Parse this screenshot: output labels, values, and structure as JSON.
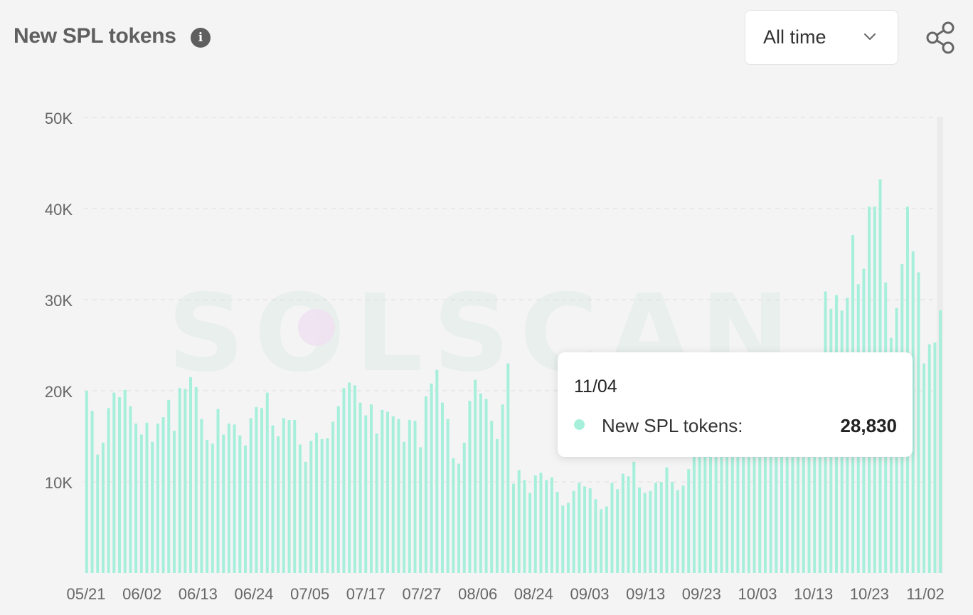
{
  "header": {
    "title": "New SPL tokens",
    "info_icon": "info-icon",
    "range_select": {
      "selected": "All time",
      "icon": "chevron-down-icon"
    },
    "share_icon": "share-icon"
  },
  "watermark": "SOLSCAN",
  "tooltip": {
    "date": "11/04",
    "series": "New SPL tokens:",
    "value": "28,830",
    "dot_color": "#a6efdb"
  },
  "chart_data": {
    "type": "bar",
    "bar_color": "#a6efdb",
    "ylim": [
      0,
      50000
    ],
    "ytick_labels": [
      "10K",
      "20K",
      "30K",
      "40K",
      "50K"
    ],
    "yticks": [
      10000,
      20000,
      30000,
      40000,
      50000
    ],
    "grid": "horizontal dashed",
    "highlighted_bar": "11/04",
    "x_tick_labels": [
      "05/21",
      "06/02",
      "06/13",
      "06/24",
      "07/05",
      "07/17",
      "07/27",
      "08/06",
      "08/24",
      "09/03",
      "09/13",
      "09/23",
      "10/03",
      "10/13",
      "10/23",
      "11/02"
    ],
    "values": [
      20000,
      17800,
      13000,
      14300,
      18100,
      19800,
      19300,
      20100,
      18300,
      16400,
      15200,
      16500,
      14400,
      16400,
      17100,
      19000,
      15600,
      20300,
      20200,
      21500,
      20400,
      16900,
      14600,
      14200,
      18000,
      15200,
      16400,
      16300,
      15100,
      14000,
      17000,
      18200,
      18100,
      19800,
      16200,
      15000,
      17000,
      16800,
      16800,
      14100,
      12200,
      14500,
      15400,
      14700,
      14800,
      16600,
      18300,
      20300,
      20900,
      20600,
      18700,
      17300,
      18500,
      15300,
      17900,
      17700,
      17200,
      16900,
      14400,
      16800,
      16700,
      13800,
      19400,
      20800,
      22300,
      18700,
      16900,
      12600,
      12000,
      14300,
      18900,
      21200,
      19700,
      19100,
      16700,
      14700,
      18500,
      23000,
      9800,
      11300,
      10200,
      8800,
      10700,
      11000,
      10200,
      10500,
      8900,
      7400,
      7700,
      9000,
      9900,
      9500,
      9300,
      8100,
      7000,
      7300,
      9900,
      9200,
      10900,
      10600,
      12200,
      9400,
      8800,
      9000,
      9900,
      10000,
      11600,
      10000,
      9100,
      9600,
      11400,
      14100,
      14700,
      14500,
      15100,
      15000,
      15800,
      15500,
      15600,
      15700,
      15800,
      16200,
      16500,
      16300,
      16700,
      16400,
      16800,
      16900,
      16800,
      17200,
      17100,
      18300,
      18000,
      18700,
      17800,
      30900,
      29000,
      30500,
      28800,
      30200,
      37100,
      31700,
      33400,
      40200,
      40200,
      43200,
      31900,
      25800,
      29100,
      33900,
      40200,
      35300,
      33000,
      23000,
      25100,
      25300,
      28830
    ]
  }
}
